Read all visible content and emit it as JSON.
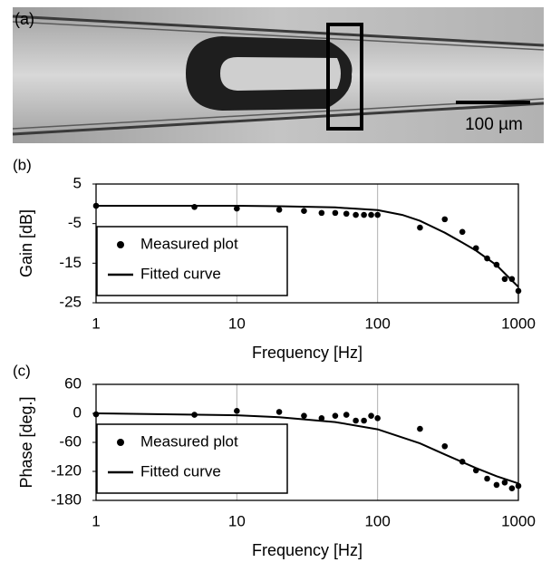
{
  "image": {
    "label": "(a)",
    "scale_bar": "100 µm"
  },
  "chart_data": [
    {
      "type": "scatter-line",
      "panel_label": "(b)",
      "xlabel": "Frequency [Hz]",
      "ylabel": "Gain [dB]",
      "log_x": true,
      "grid": "x",
      "legend": "lower left",
      "xlim": [
        1,
        1000
      ],
      "xticks": [
        1,
        10,
        100,
        1000
      ],
      "ylim": [
        -25,
        5
      ],
      "yticks": [
        5,
        -5,
        -15,
        -25
      ],
      "series": [
        {
          "name": "Measured plot",
          "style": "markers",
          "color": "#000000",
          "x": [
            1,
            5,
            10,
            20,
            30,
            40,
            50,
            60,
            70,
            80,
            90,
            100,
            200,
            300,
            400,
            500,
            600,
            700,
            800,
            900,
            1000
          ],
          "values": [
            -0.5,
            -0.8,
            -1.2,
            -1.5,
            -1.8,
            -2.3,
            -2.3,
            -2.5,
            -2.8,
            -2.8,
            -2.8,
            -2.8,
            -6,
            -3.9,
            -7.1,
            -11.2,
            -13.8,
            -15.4,
            -19,
            -19,
            -22
          ]
        },
        {
          "name": "Fitted curve",
          "style": "line",
          "color": "#000000",
          "x": [
            1,
            10,
            20,
            50,
            100,
            150,
            200,
            300,
            400,
            500,
            700,
            1000
          ],
          "values": [
            -0.5,
            -0.5,
            -0.6,
            -0.9,
            -1.6,
            -2.8,
            -4.3,
            -7.3,
            -9.8,
            -11.8,
            -15.5,
            -21
          ]
        }
      ]
    },
    {
      "type": "scatter-line",
      "panel_label": "(c)",
      "xlabel": "Frequency [Hz]",
      "ylabel": "Phase [deg.]",
      "log_x": true,
      "grid": "x",
      "legend": "lower left",
      "xlim": [
        1,
        1000
      ],
      "xticks": [
        1,
        10,
        100,
        1000
      ],
      "ylim": [
        -180,
        60
      ],
      "yticks": [
        60,
        0,
        -60,
        -120,
        -180
      ],
      "series": [
        {
          "name": "Measured plot",
          "style": "markers",
          "color": "#000000",
          "x": [
            1,
            5,
            10,
            20,
            30,
            40,
            50,
            60,
            70,
            80,
            90,
            100,
            200,
            300,
            400,
            500,
            600,
            700,
            800,
            900,
            1000
          ],
          "values": [
            -2,
            -3,
            5,
            3,
            -5,
            -10,
            -5,
            -3,
            -15,
            -15,
            -5,
            -10,
            -32,
            -68,
            -100,
            -118,
            -135,
            -148,
            -143,
            -155,
            -150
          ]
        },
        {
          "name": "Fitted curve",
          "style": "line",
          "color": "#000000",
          "x": [
            1,
            10,
            20,
            50,
            100,
            200,
            300,
            500,
            700,
            1000
          ],
          "values": [
            0,
            -4,
            -8,
            -18,
            -33,
            -62,
            -85,
            -113,
            -130,
            -145
          ]
        }
      ]
    }
  ]
}
